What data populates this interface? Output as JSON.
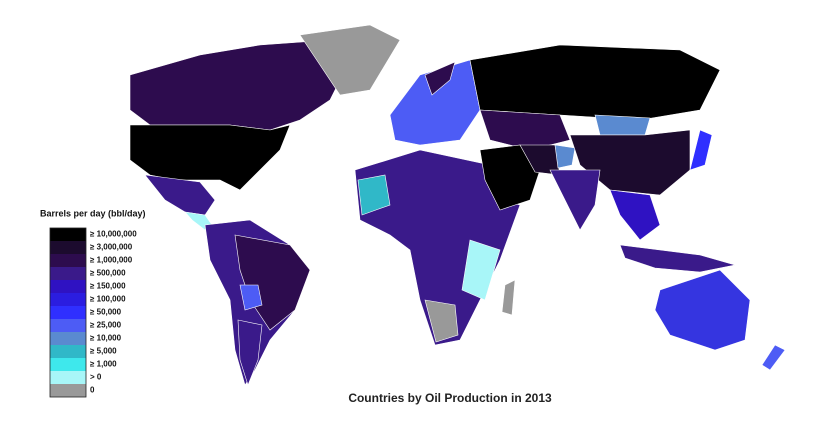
{
  "map": {
    "title": "Countries by Oil Production in 2013",
    "legend": {
      "title": "Barrels per day (bbl/day)",
      "items": [
        {
          "label": "≥ 10,000,000",
          "color": "#000000"
        },
        {
          "label": "≥ 3,000,000",
          "color": "#1c0b2e"
        },
        {
          "label": "≥ 1,000,000",
          "color": "#2d0c4e"
        },
        {
          "label": "≥ 500,000",
          "color": "#3a1a8a"
        },
        {
          "label": "≥ 150,000",
          "color": "#2f12c2"
        },
        {
          "label": "≥ 100,000",
          "color": "#2b1de0"
        },
        {
          "label": "≥ 50,000",
          "color": "#2f2fff"
        },
        {
          "label": "≥ 25,000",
          "color": "#4d5cf5"
        },
        {
          "label": "≥ 10,000",
          "color": "#5a8ad0"
        },
        {
          "label": "≥ 5,000",
          "color": "#30b8c8"
        },
        {
          "label": "≥ 1,000",
          "color": "#3ee8ec"
        },
        {
          "label": "> 0",
          "color": "#a8f6f8"
        },
        {
          "label": "0",
          "color": "#999999"
        }
      ]
    }
  }
}
